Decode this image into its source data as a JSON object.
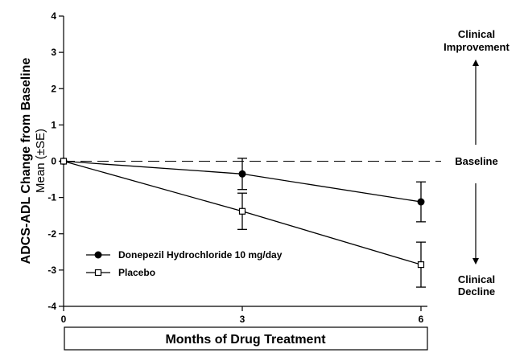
{
  "chart_data": {
    "type": "line",
    "x": [
      0,
      3,
      6
    ],
    "xlabel": "Months of Drug Treatment",
    "ylabel": "ADCS-ADL Change from Baseline",
    "ylabel_sub": "Mean (±SE)",
    "xlim": [
      0,
      6
    ],
    "ylim": [
      -4,
      4
    ],
    "xticks": [
      "0",
      "3",
      "6"
    ],
    "yticks": [
      "4",
      "3",
      "2",
      "1",
      "0",
      "-1",
      "-2",
      "-3",
      "-4"
    ],
    "series": [
      {
        "name": "Donepezil Hydrochloride 10 mg/day",
        "marker": "filled-circle",
        "values": [
          0,
          -0.35,
          -1.12
        ],
        "errors": [
          0,
          0.43,
          0.55
        ],
        "color": "#000000"
      },
      {
        "name": "Placebo",
        "marker": "open-square",
        "values": [
          0,
          -1.38,
          -2.85
        ],
        "errors": [
          0,
          0.5,
          0.62
        ],
        "color": "#000000"
      }
    ],
    "baseline_value": 0,
    "legend_position": "bottom-left",
    "grid": false,
    "annotations": {
      "improvement": [
        "Clinical",
        "Improvement"
      ],
      "baseline": "Baseline",
      "decline": [
        "Clinical",
        "Decline"
      ]
    }
  }
}
